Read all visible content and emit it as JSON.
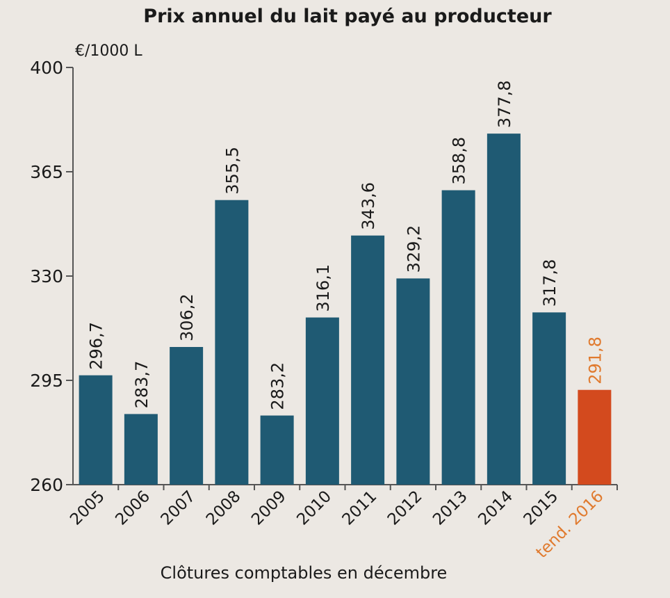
{
  "chart_data": {
    "type": "bar",
    "title": "Prix annuel du lait payé au producteur",
    "ylabel": "€/1000 L",
    "xlabel": "Clôtures comptables en décembre",
    "ylim": [
      260,
      400
    ],
    "yticks": [
      260,
      295,
      330,
      365,
      400
    ],
    "ytick_labels": [
      "260",
      "295",
      "330",
      "365",
      "400"
    ],
    "categories": [
      "2005",
      "2006",
      "2007",
      "2008",
      "2009",
      "2010",
      "2011",
      "2012",
      "2013",
      "2014",
      "2015",
      "tend. 2016"
    ],
    "values": [
      296.7,
      283.7,
      306.2,
      355.5,
      283.2,
      316.1,
      343.6,
      329.2,
      358.8,
      377.8,
      317.8,
      291.8
    ],
    "value_labels": [
      "296,7",
      "283,7",
      "306,2",
      "355,5",
      "283,2",
      "316,1",
      "343,6",
      "329,2",
      "358,8",
      "377,8",
      "317,8",
      "291,8"
    ],
    "highlighted": [
      false,
      false,
      false,
      false,
      false,
      false,
      false,
      false,
      false,
      false,
      false,
      true
    ],
    "grid": false,
    "colors": {
      "bar": "#1f5a73",
      "highlight": "#d34a1e",
      "highlight_text": "#e07a2e",
      "text": "#1a1a1a",
      "axis": "#555555"
    }
  }
}
